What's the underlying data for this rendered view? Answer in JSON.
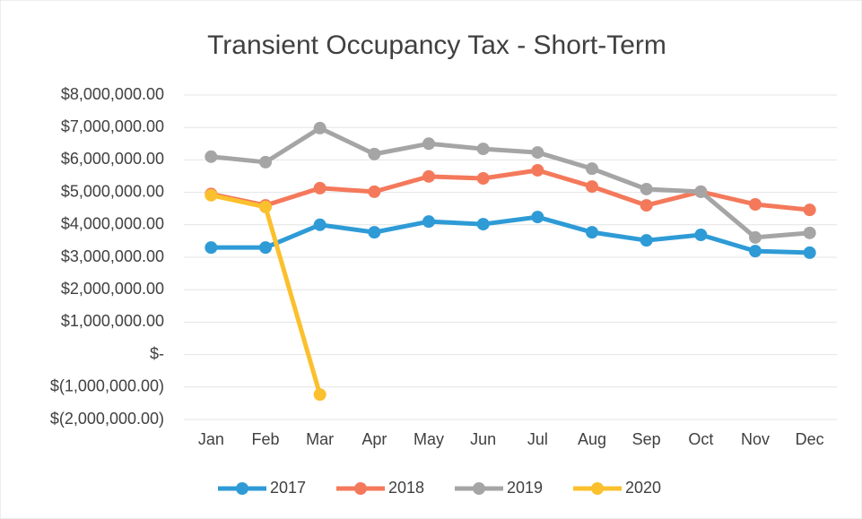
{
  "chart_data": {
    "type": "line",
    "title": "Transient Occupancy Tax - Short-Term",
    "categories": [
      "Jan",
      "Feb",
      "Mar",
      "Apr",
      "May",
      "Jun",
      "Jul",
      "Aug",
      "Sep",
      "Oct",
      "Nov",
      "Dec"
    ],
    "series": [
      {
        "name": "2017",
        "color": "#2e9bd6",
        "values": [
          3300000,
          3300000,
          4000000,
          3770000,
          4100000,
          4020000,
          4240000,
          3770000,
          3520000,
          3690000,
          3190000,
          3140000
        ]
      },
      {
        "name": "2018",
        "color": "#f4795b",
        "values": [
          4950000,
          4600000,
          5130000,
          5020000,
          5490000,
          5430000,
          5680000,
          5180000,
          4600000,
          5020000,
          4630000,
          4460000
        ]
      },
      {
        "name": "2019",
        "color": "#a5a5a5",
        "values": [
          6100000,
          5930000,
          6980000,
          6180000,
          6500000,
          6340000,
          6230000,
          5730000,
          5100000,
          5020000,
          3610000,
          3750000
        ]
      },
      {
        "name": "2020",
        "color": "#fbc02d",
        "values": [
          4910000,
          4550000,
          -1230000,
          null,
          null,
          null,
          null,
          null,
          null,
          null,
          null,
          null
        ]
      }
    ],
    "ylim": [
      -2000000,
      8000000
    ],
    "yticks": [
      {
        "value": -2000000,
        "label": "$(2,000,000.00)"
      },
      {
        "value": -1000000,
        "label": "$(1,000,000.00)"
      },
      {
        "value": 0,
        "label": "$-"
      },
      {
        "value": 1000000,
        "label": "$1,000,000.00"
      },
      {
        "value": 2000000,
        "label": "$2,000,000.00"
      },
      {
        "value": 3000000,
        "label": "$3,000,000.00"
      },
      {
        "value": 4000000,
        "label": "$4,000,000.00"
      },
      {
        "value": 5000000,
        "label": "$5,000,000.00"
      },
      {
        "value": 6000000,
        "label": "$6,000,000.00"
      },
      {
        "value": 7000000,
        "label": "$7,000,000.00"
      },
      {
        "value": 8000000,
        "label": "$8,000,000.00"
      }
    ],
    "grid": true,
    "legend": "bottom"
  }
}
